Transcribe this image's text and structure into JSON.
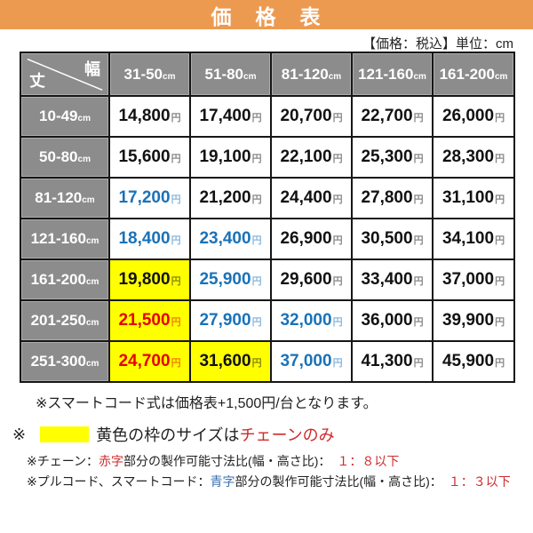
{
  "title_bar": {
    "label": "価　格　表"
  },
  "subtitle": {
    "label": "【価格：税込】単位：cm"
  },
  "table": {
    "corner": {
      "top_right": "幅",
      "bottom_left": "丈"
    },
    "col_headers": [
      {
        "range": "31-50",
        "unit": "cm"
      },
      {
        "range": "51-80",
        "unit": "cm"
      },
      {
        "range": "81-120",
        "unit": "cm"
      },
      {
        "range": "121-160",
        "unit": "cm"
      },
      {
        "range": "161-200",
        "unit": "cm"
      }
    ],
    "rows": [
      {
        "header": {
          "range": "10-49",
          "unit": "cm"
        },
        "cells": [
          {
            "value": "14,800",
            "suffix": "円",
            "color": "black",
            "bg": "white"
          },
          {
            "value": "17,400",
            "suffix": "円",
            "color": "black",
            "bg": "white"
          },
          {
            "value": "20,700",
            "suffix": "円",
            "color": "black",
            "bg": "white"
          },
          {
            "value": "22,700",
            "suffix": "円",
            "color": "black",
            "bg": "white"
          },
          {
            "value": "26,000",
            "suffix": "円",
            "color": "black",
            "bg": "white"
          }
        ]
      },
      {
        "header": {
          "range": "50-80",
          "unit": "cm"
        },
        "cells": [
          {
            "value": "15,600",
            "suffix": "円",
            "color": "black",
            "bg": "white"
          },
          {
            "value": "19,100",
            "suffix": "円",
            "color": "black",
            "bg": "white"
          },
          {
            "value": "22,100",
            "suffix": "円",
            "color": "black",
            "bg": "white"
          },
          {
            "value": "25,300",
            "suffix": "円",
            "color": "black",
            "bg": "white"
          },
          {
            "value": "28,300",
            "suffix": "円",
            "color": "black",
            "bg": "white"
          }
        ]
      },
      {
        "header": {
          "range": "81-120",
          "unit": "cm"
        },
        "cells": [
          {
            "value": "17,200",
            "suffix": "円",
            "color": "blue",
            "bg": "white"
          },
          {
            "value": "21,200",
            "suffix": "円",
            "color": "black",
            "bg": "white"
          },
          {
            "value": "24,400",
            "suffix": "円",
            "color": "black",
            "bg": "white"
          },
          {
            "value": "27,800",
            "suffix": "円",
            "color": "black",
            "bg": "white"
          },
          {
            "value": "31,100",
            "suffix": "円",
            "color": "black",
            "bg": "white"
          }
        ]
      },
      {
        "header": {
          "range": "121-160",
          "unit": "cm"
        },
        "cells": [
          {
            "value": "18,400",
            "suffix": "円",
            "color": "blue",
            "bg": "white"
          },
          {
            "value": "23,400",
            "suffix": "円",
            "color": "blue",
            "bg": "white"
          },
          {
            "value": "26,900",
            "suffix": "円",
            "color": "black",
            "bg": "white"
          },
          {
            "value": "30,500",
            "suffix": "円",
            "color": "black",
            "bg": "white"
          },
          {
            "value": "34,100",
            "suffix": "円",
            "color": "black",
            "bg": "white"
          }
        ]
      },
      {
        "header": {
          "range": "161-200",
          "unit": "cm"
        },
        "cells": [
          {
            "value": "19,800",
            "suffix": "円",
            "color": "black",
            "bg": "yellow"
          },
          {
            "value": "25,900",
            "suffix": "円",
            "color": "blue",
            "bg": "white"
          },
          {
            "value": "29,600",
            "suffix": "円",
            "color": "black",
            "bg": "white"
          },
          {
            "value": "33,400",
            "suffix": "円",
            "color": "black",
            "bg": "white"
          },
          {
            "value": "37,000",
            "suffix": "円",
            "color": "black",
            "bg": "white"
          }
        ]
      },
      {
        "header": {
          "range": "201-250",
          "unit": "cm"
        },
        "cells": [
          {
            "value": "21,500",
            "suffix": "円",
            "color": "red",
            "bg": "yellow"
          },
          {
            "value": "27,900",
            "suffix": "円",
            "color": "blue",
            "bg": "white"
          },
          {
            "value": "32,000",
            "suffix": "円",
            "color": "blue",
            "bg": "white"
          },
          {
            "value": "36,000",
            "suffix": "円",
            "color": "black",
            "bg": "white"
          },
          {
            "value": "39,900",
            "suffix": "円",
            "color": "black",
            "bg": "white"
          }
        ]
      },
      {
        "header": {
          "range": "251-300",
          "unit": "cm"
        },
        "cells": [
          {
            "value": "24,700",
            "suffix": "円",
            "color": "red",
            "bg": "yellow"
          },
          {
            "value": "31,600",
            "suffix": "円",
            "color": "black",
            "bg": "yellow"
          },
          {
            "value": "37,000",
            "suffix": "円",
            "color": "blue",
            "bg": "white"
          },
          {
            "value": "41,300",
            "suffix": "円",
            "color": "black",
            "bg": "white"
          },
          {
            "value": "45,900",
            "suffix": "円",
            "color": "black",
            "bg": "white"
          }
        ]
      }
    ]
  },
  "notes": {
    "note1": {
      "text": "※スマートコード式は価格表+1,500円/台となります。"
    },
    "note2": {
      "prefix": "※",
      "swatch_color": "#FFFF00",
      "text_black": "黄色の枠のサイズは",
      "text_red": "チェーンのみ"
    },
    "note3": {
      "segments": [
        {
          "text": "※チェーン：",
          "color": "black"
        },
        {
          "text": "赤字",
          "color": "red"
        },
        {
          "text": "部分の製作可能寸法比(幅・高さ比)：",
          "color": "black"
        },
        {
          "text": "　１：８以下",
          "color": "red"
        }
      ]
    },
    "note4": {
      "segments": [
        {
          "text": "※プルコード、スマートコード：",
          "color": "black"
        },
        {
          "text": "青字",
          "color": "blue"
        },
        {
          "text": "部分の製作可能寸法比(幅・高さ比)：",
          "color": "black"
        },
        {
          "text": "　１：３以下",
          "color": "red"
        }
      ]
    }
  },
  "colors": {
    "accent_orange": "#ED9A51",
    "header_gray": "#8C8C8C",
    "price_blue": "#1A72B8",
    "price_red": "#E60000",
    "highlight_yellow": "#FFFF00"
  }
}
